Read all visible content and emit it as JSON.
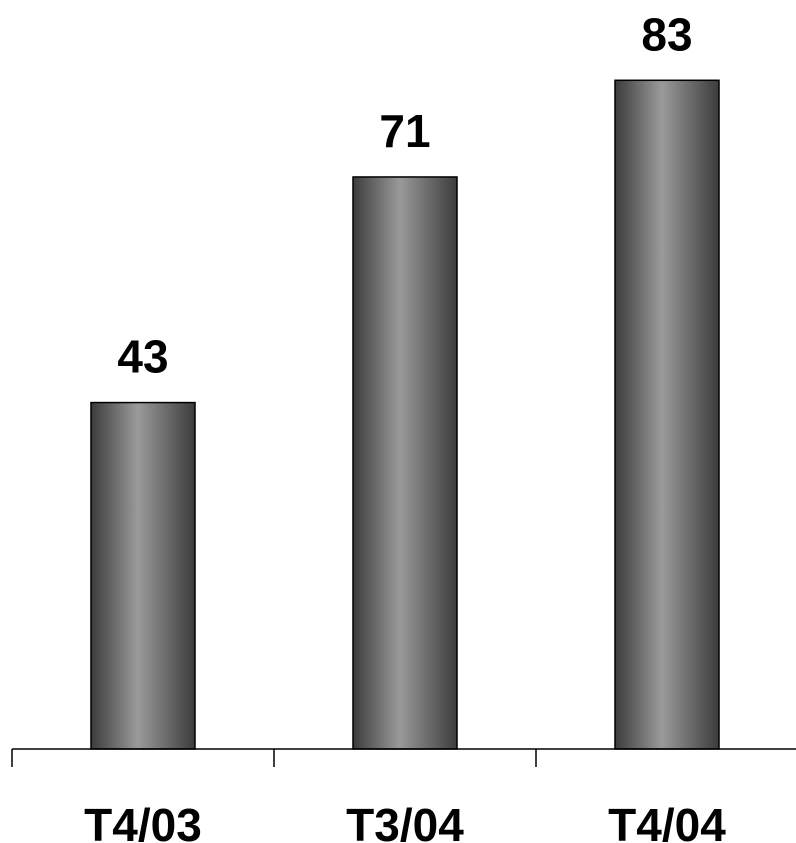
{
  "chart_data": {
    "type": "bar",
    "categories": [
      "T4/03",
      "T3/04",
      "T4/04"
    ],
    "values": [
      43,
      71,
      83
    ],
    "ylim": [
      0,
      88
    ],
    "data_labels": true,
    "grid": false,
    "legend": "none",
    "bar_colors": {
      "edge": "#3c3c3c",
      "center": "#9a9a9a",
      "outline": "#000000"
    }
  }
}
